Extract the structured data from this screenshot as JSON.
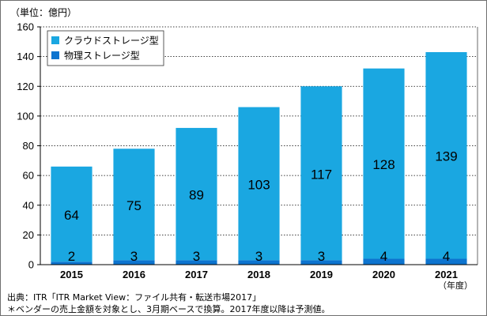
{
  "unit_label": "（単位：億円）",
  "year_suffix": "（年度）",
  "source": "出典：ITR「ITR Market View：ファイル共有・転送市場2017」",
  "note": "＊ベンダーの売上金額を対象とし、3月期ベースで換算。2017年度以降は予測値。",
  "colors": {
    "cloud": "#1aa7e1",
    "physical": "#0d74cf",
    "grid": "#000000",
    "axis": "#000000"
  },
  "chart_data": {
    "type": "bar",
    "stacked": true,
    "categories": [
      "2015",
      "2016",
      "2017",
      "2018",
      "2019",
      "2020",
      "2021"
    ],
    "series": [
      {
        "name": "物理ストレージ型",
        "values": [
          2,
          3,
          3,
          3,
          3,
          4,
          4
        ]
      },
      {
        "name": "クラウドストレージ型",
        "values": [
          64,
          75,
          89,
          103,
          117,
          128,
          139
        ]
      }
    ],
    "ylim": [
      0,
      160
    ],
    "yticks": [
      0,
      20,
      40,
      60,
      80,
      100,
      120,
      140,
      160
    ],
    "grid": true,
    "grid_style": "dashed",
    "legend_position": "top-left",
    "legend_order": [
      "クラウドストレージ型",
      "物理ストレージ型"
    ]
  }
}
